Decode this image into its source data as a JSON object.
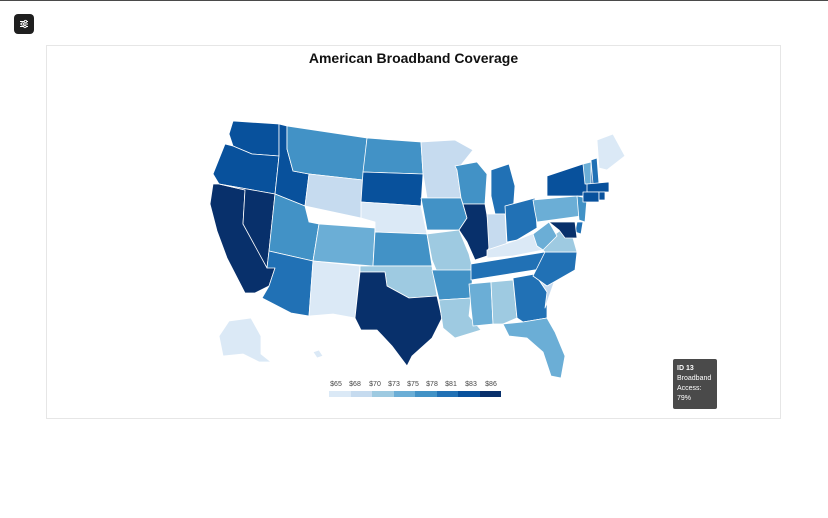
{
  "chart_data": {
    "type": "choropleth",
    "title": "American Broadband Coverage",
    "legend": {
      "labels": [
        "$65",
        "$68",
        "$70",
        "$73",
        "$75",
        "$78",
        "$81",
        "$83",
        "$86"
      ],
      "colors": [
        "#f4f8fc",
        "#dbe9f6",
        "#c6dbef",
        "#9ecae1",
        "#6baed6",
        "#4292c6",
        "#2171b5",
        "#08519c",
        "#08306b"
      ]
    },
    "states": [
      {
        "name": "WA",
        "color": "#08519c"
      },
      {
        "name": "OR",
        "color": "#08519c"
      },
      {
        "name": "CA",
        "color": "#08306b"
      },
      {
        "name": "NV",
        "color": "#08306b"
      },
      {
        "name": "ID",
        "color": "#08519c"
      },
      {
        "name": "MT",
        "color": "#4292c6"
      },
      {
        "name": "WY",
        "color": "#c6dbef"
      },
      {
        "name": "UT",
        "color": "#4292c6"
      },
      {
        "name": "AZ",
        "color": "#2171b5"
      },
      {
        "name": "CO",
        "color": "#6baed6"
      },
      {
        "name": "NM",
        "color": "#dbe9f6"
      },
      {
        "name": "ND",
        "color": "#4292c6"
      },
      {
        "name": "SD",
        "color": "#08519c"
      },
      {
        "name": "NE",
        "color": "#dbe9f6"
      },
      {
        "name": "KS",
        "color": "#4292c6"
      },
      {
        "name": "OK",
        "color": "#9ecae1"
      },
      {
        "name": "TX",
        "color": "#08306b"
      },
      {
        "name": "MN",
        "color": "#c6dbef"
      },
      {
        "name": "IA",
        "color": "#4292c6"
      },
      {
        "name": "MO",
        "color": "#9ecae1"
      },
      {
        "name": "AR",
        "color": "#4292c6"
      },
      {
        "name": "LA",
        "color": "#9ecae1"
      },
      {
        "name": "WI",
        "color": "#4292c6"
      },
      {
        "name": "IL",
        "color": "#08306b"
      },
      {
        "name": "MI",
        "color": "#2171b5"
      },
      {
        "name": "IN",
        "color": "#c6dbef"
      },
      {
        "name": "OH",
        "color": "#2171b5"
      },
      {
        "name": "KY",
        "color": "#dbe9f6"
      },
      {
        "name": "TN",
        "color": "#2171b5"
      },
      {
        "name": "MS",
        "color": "#6baed6"
      },
      {
        "name": "AL",
        "color": "#9ecae1"
      },
      {
        "name": "GA",
        "color": "#2171b5"
      },
      {
        "name": "FL",
        "color": "#6baed6"
      },
      {
        "name": "SC",
        "color": "#c6dbef"
      },
      {
        "name": "NC",
        "color": "#2171b5"
      },
      {
        "name": "VA",
        "color": "#9ecae1"
      },
      {
        "name": "WV",
        "color": "#6baed6"
      },
      {
        "name": "PA",
        "color": "#6baed6"
      },
      {
        "name": "NY",
        "color": "#08519c"
      },
      {
        "name": "VT",
        "color": "#6baed6"
      },
      {
        "name": "NH",
        "color": "#2171b5"
      },
      {
        "name": "ME",
        "color": "#dbe9f6"
      },
      {
        "name": "MA",
        "color": "#08519c"
      },
      {
        "name": "CT",
        "color": "#08519c"
      },
      {
        "name": "RI",
        "color": "#08519c"
      },
      {
        "name": "NJ",
        "color": "#4292c6"
      },
      {
        "name": "DE",
        "color": "#2171b5"
      },
      {
        "name": "MD",
        "color": "#08306b"
      },
      {
        "name": "AK",
        "color": "#dbe9f6"
      },
      {
        "name": "HI",
        "color": "#dbe9f6"
      }
    ]
  },
  "tooltip": {
    "id": "ID 13",
    "line1": "Broadband",
    "line2": "Access:",
    "line3": "79%"
  },
  "icons": {
    "settings": "sliders-icon"
  }
}
